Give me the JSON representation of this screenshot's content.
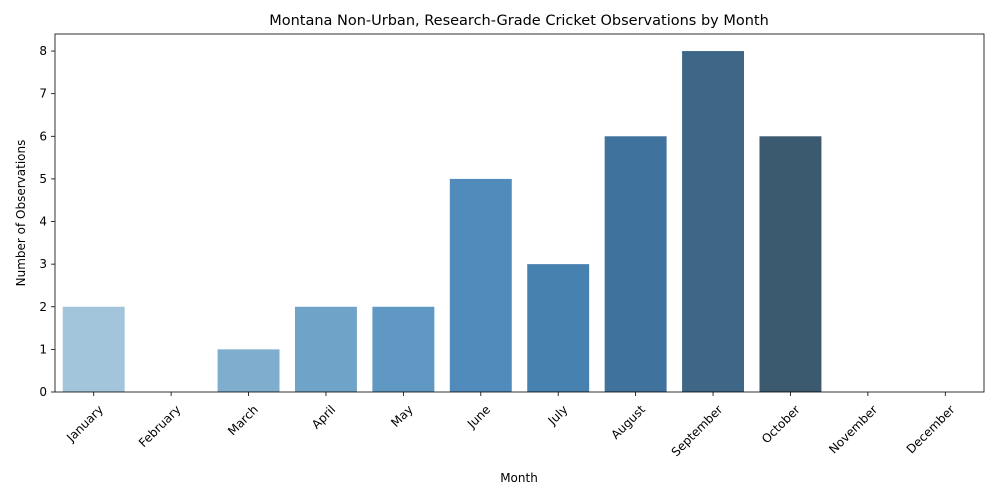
{
  "chart_data": {
    "type": "bar",
    "title": "Montana Non-Urban, Research-Grade Cricket Observations by Month",
    "xlabel": "Month",
    "ylabel": "Number of Observations",
    "categories": [
      "January",
      "February",
      "March",
      "April",
      "May",
      "June",
      "July",
      "August",
      "September",
      "October",
      "November",
      "December"
    ],
    "values": [
      2,
      0,
      1,
      2,
      2,
      5,
      3,
      6,
      8,
      6,
      0,
      0
    ],
    "colors": [
      "#a2c5dc",
      "#8fb6d3",
      "#7eadcd",
      "#6fa3c8",
      "#5f98c3",
      "#518bbc",
      "#4681b0",
      "#40729e",
      "#3e6686",
      "#3b5a6f",
      "#3a4f5d",
      "#383f46"
    ],
    "ylim": [
      0,
      8.4
    ],
    "yticks": [
      0,
      1,
      2,
      3,
      4,
      5,
      6,
      7,
      8
    ],
    "grid": false,
    "legend": "none"
  }
}
